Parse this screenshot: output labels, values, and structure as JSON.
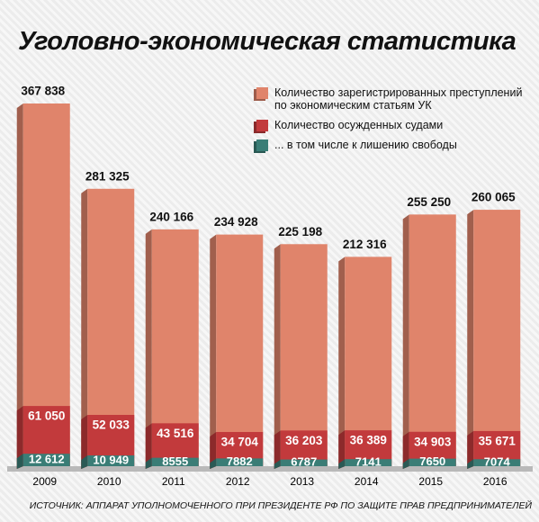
{
  "chart_data": {
    "type": "bar",
    "title": "Уголовно-экономическая статистика",
    "source": "ИСТОЧНИК: АППАРАТ УПОЛНОМОЧЕННОГО ПРИ ПРЕЗИДЕНТЕ РФ ПО ЗАЩИТЕ ПРАВ ПРЕДПРИНИМАТЕЛЕЙ",
    "categories": [
      "2009",
      "2010",
      "2011",
      "2012",
      "2013",
      "2014",
      "2015",
      "2016"
    ],
    "series": [
      {
        "name": "Количество зарегистрированных преступлений по экономическим статьям УК",
        "color": "#e0846b",
        "values": [
          367838,
          281325,
          240166,
          234928,
          225198,
          212316,
          255250,
          260065
        ],
        "value_labels": [
          "367 838",
          "281 325",
          "240 166",
          "234 928",
          "225 198",
          "212 316",
          "255 250",
          "260 065"
        ]
      },
      {
        "name": "Количество осужденных судами",
        "color": "#c23a3c",
        "values": [
          61050,
          52033,
          43516,
          34704,
          36203,
          36389,
          34903,
          35671
        ],
        "value_labels": [
          "61 050",
          "52 033",
          "43 516",
          "34 704",
          "36 203",
          "36 389",
          "34 903",
          "35 671"
        ]
      },
      {
        "name": "... в том числе к лишению свободы",
        "color": "#3a7d76",
        "values": [
          12612,
          10949,
          8555,
          7882,
          6787,
          7141,
          7650,
          7074
        ],
        "value_labels": [
          "12 612",
          "10 949",
          "8555",
          "7882",
          "6787",
          "7141",
          "7650",
          "7074"
        ]
      }
    ]
  }
}
